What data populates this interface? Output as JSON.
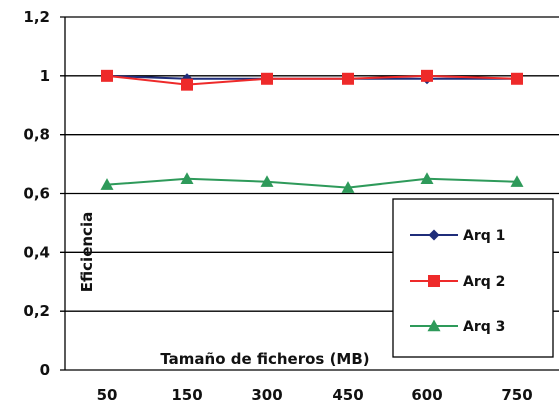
{
  "chart_data": {
    "type": "line",
    "categories": [
      "50",
      "150",
      "300",
      "450",
      "600",
      "750"
    ],
    "series": [
      {
        "name": "Arq 1",
        "values": [
          1.0,
          0.99,
          0.99,
          0.99,
          0.99,
          0.99
        ],
        "color": "#1f2d7a",
        "marker": "diamond"
      },
      {
        "name": "Arq 2",
        "values": [
          1.0,
          0.97,
          0.99,
          0.99,
          1.0,
          0.99
        ],
        "color": "#ee2a2a",
        "marker": "square"
      },
      {
        "name": "Arq 3",
        "values": [
          0.63,
          0.65,
          0.64,
          0.62,
          0.65,
          0.64
        ],
        "color": "#2e9a5a",
        "marker": "triangle"
      }
    ],
    "xlabel": "Tamaño de ficheros (MB)",
    "ylabel": "Eficiencia",
    "ylim": [
      0,
      1.2
    ],
    "yticks": [
      "0",
      "0,2",
      "0,4",
      "0,6",
      "0,8",
      "1",
      "1,2"
    ],
    "grid": true,
    "legend_position": "bottom-right"
  }
}
